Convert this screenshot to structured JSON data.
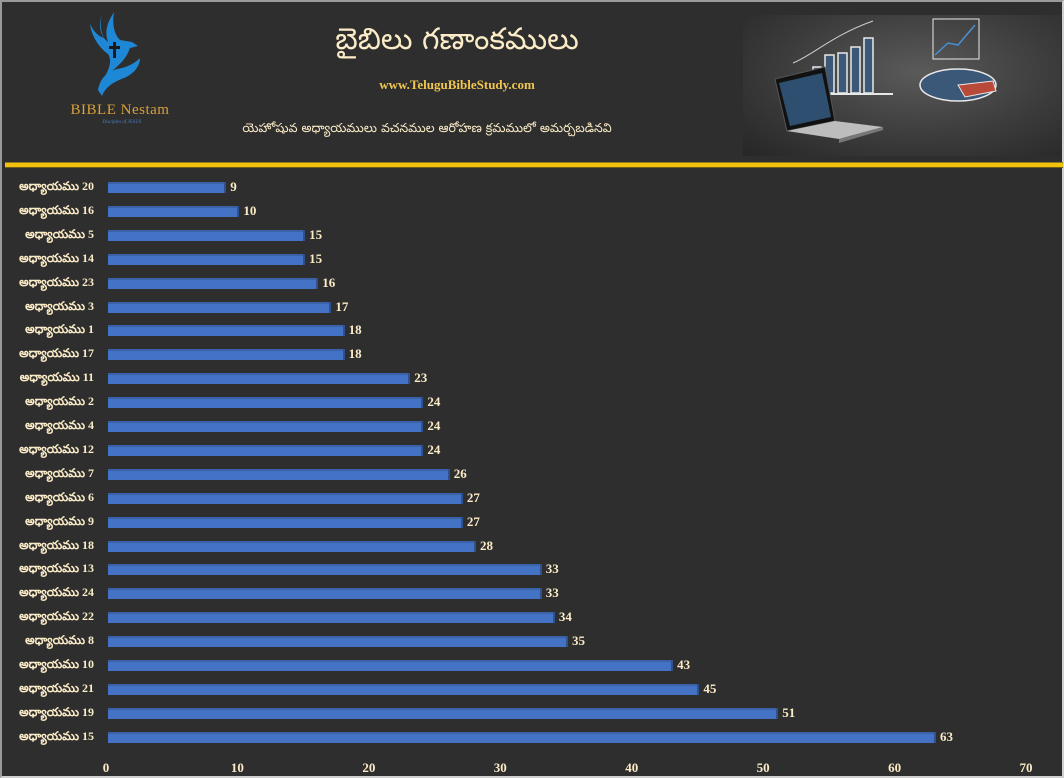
{
  "header": {
    "logo_text": "BIBLE Nestam",
    "logo_tagline": "Disciples of JESUS",
    "title": "బైబిలు గణాంకములు",
    "website": "www.TeluguBibleStudy.com",
    "subtitle": "యెహోషువ అధ్యాయములు వచనముల ఆరోహణ క్రమములో అమర్చబడినవి"
  },
  "colors": {
    "background": "#2e2e2e",
    "bar": "#4472c4",
    "text": "#fbecc7",
    "accent_line": "#f4c20d",
    "website": "#f0c550",
    "logo_text": "#d8a03a"
  },
  "chart_data": {
    "type": "bar",
    "orientation": "horizontal",
    "title": "బైబిలు గణాంకములు",
    "subtitle": "యెహోషువ అధ్యాయములు వచనముల ఆరోహణ క్రమములో అమర్చబడినవి",
    "xlabel": "",
    "ylabel": "",
    "xlim": [
      0,
      70
    ],
    "x_ticks": [
      "0",
      "10",
      "20",
      "30",
      "40",
      "50",
      "60",
      "70"
    ],
    "grid": false,
    "legend": "none",
    "categories": [
      "అధ్యాయము 20",
      "అధ్యాయము 16",
      "అధ్యాయము 5",
      "అధ్యాయము 14",
      "అధ్యాయము 23",
      "అధ్యాయము 3",
      "అధ్యాయము 1",
      "అధ్యాయము 17",
      "అధ్యాయము 11",
      "అధ్యాయము 2",
      "అధ్యాయము 4",
      "అధ్యాయము 12",
      "అధ్యాయము 7",
      "అధ్యాయము 6",
      "అధ్యాయము 9",
      "అధ్యాయము 18",
      "అధ్యాయము 13",
      "అధ్యాయము 24",
      "అధ్యాయము 22",
      "అధ్యాయము 8",
      "అధ్యాయము 10",
      "అధ్యాయము 21",
      "అధ్యాయము 19",
      "అధ్యాయము 15"
    ],
    "values": [
      9,
      10,
      15,
      15,
      16,
      17,
      18,
      18,
      23,
      24,
      24,
      24,
      26,
      27,
      27,
      28,
      33,
      33,
      34,
      35,
      43,
      45,
      51,
      63
    ]
  }
}
